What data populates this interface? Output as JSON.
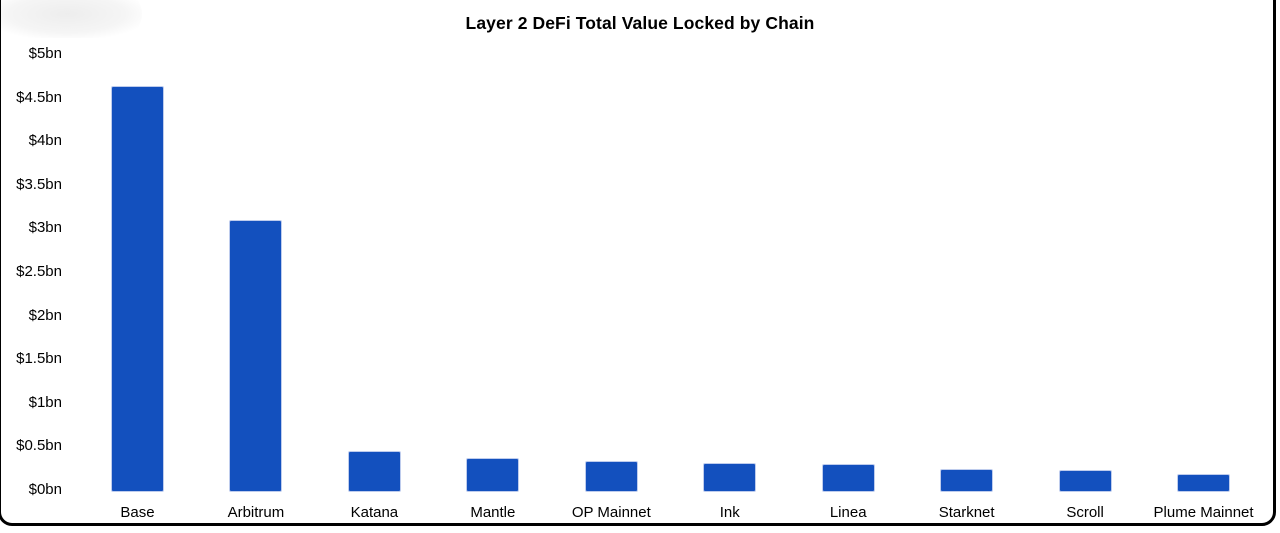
{
  "chart_data": {
    "type": "bar",
    "title": "Layer 2 DeFi Total Value Locked by Chain",
    "categories": [
      "Base",
      "Arbitrum",
      "Katana",
      "Mantle",
      "OP Mainnet",
      "Ink",
      "Linea",
      "Starknet",
      "Scroll",
      "Plume Mainnet"
    ],
    "values": [
      4.63,
      3.1,
      0.45,
      0.37,
      0.33,
      0.31,
      0.3,
      0.24,
      0.23,
      0.18
    ],
    "unit": "billions USD",
    "xlabel": "",
    "ylabel": "",
    "y_tick_labels": [
      "$0bn",
      "$0.5bn",
      "$1bn",
      "$1.5bn",
      "$2bn",
      "$2.5bn",
      "$3bn",
      "$3.5bn",
      "$4bn",
      "$4.5bn",
      "$5bn"
    ],
    "y_tick_values": [
      0,
      0.5,
      1,
      1.5,
      2,
      2.5,
      3,
      3.5,
      4,
      4.5,
      5
    ],
    "ylim": [
      0,
      5
    ],
    "grid": false,
    "legend": false,
    "bar_color": "#1350BE",
    "background_color": "#ffffff",
    "text_color": "#000000"
  }
}
